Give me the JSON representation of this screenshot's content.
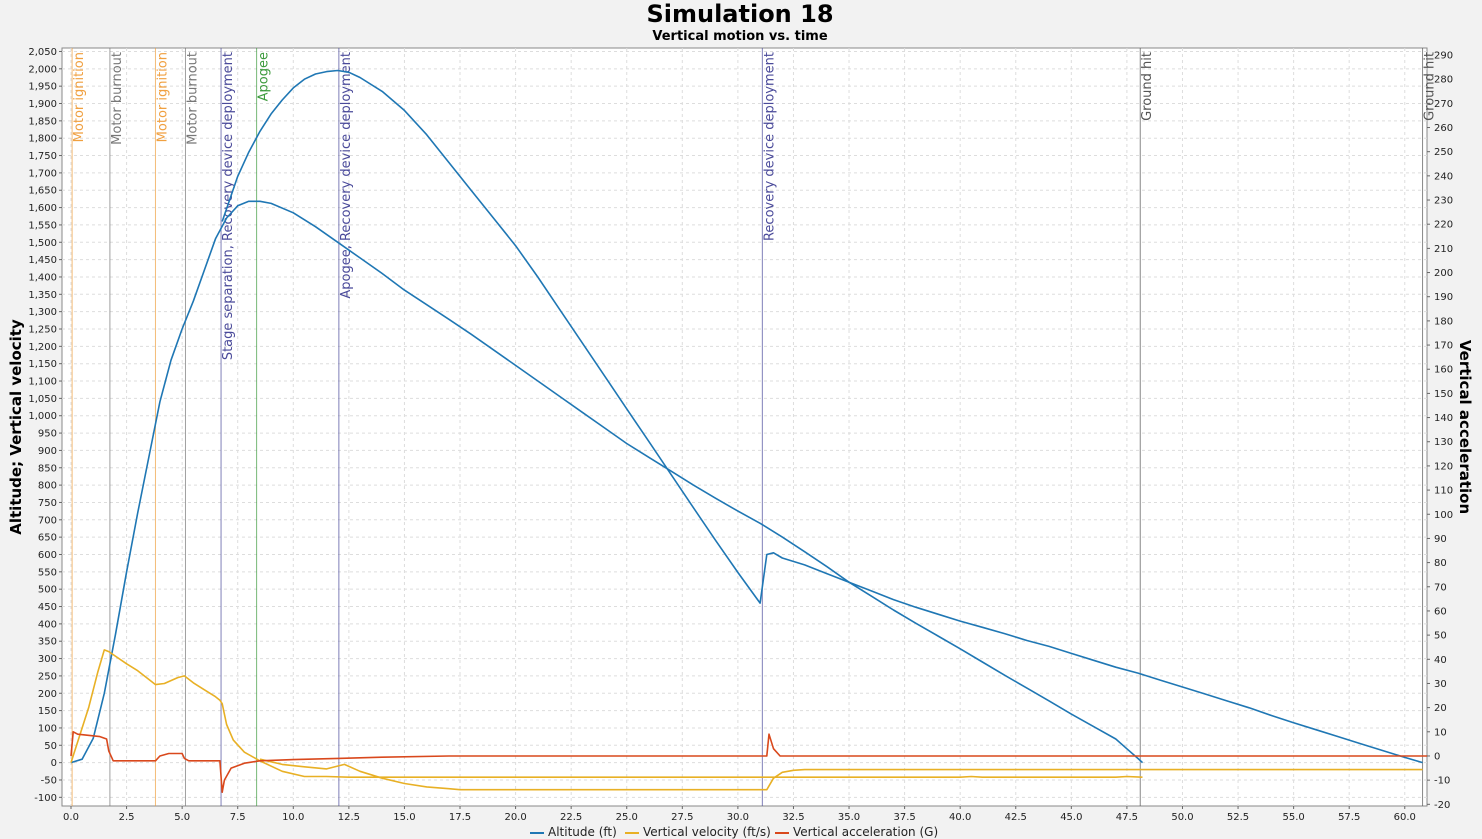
{
  "chart_data": {
    "type": "line",
    "title": "Simulation 18",
    "subtitle": "Vertical motion vs. time",
    "ylabel": "Altitude; Vertical velocity",
    "y2label": "Vertical acceleration",
    "xlim": [
      0,
      61
    ],
    "ylim": [
      -125,
      2060
    ],
    "y2lim": [
      -20.7,
      292.9
    ],
    "x_ticks": [
      "0.0",
      "2.5",
      "5.0",
      "7.5",
      "10.0",
      "12.5",
      "15.0",
      "17.5",
      "20.0",
      "22.5",
      "25.0",
      "27.5",
      "30.0",
      "32.5",
      "35.0",
      "37.5",
      "40.0",
      "42.5",
      "45.0",
      "47.5",
      "50.0",
      "52.5",
      "55.0",
      "57.5",
      "60.0"
    ],
    "y_ticks": [
      "-100",
      "-50",
      "0",
      "50",
      "100",
      "150",
      "200",
      "250",
      "300",
      "350",
      "400",
      "450",
      "500",
      "550",
      "600",
      "650",
      "700",
      "750",
      "800",
      "850",
      "900",
      "950",
      "1,000",
      "1,050",
      "1,100",
      "1,150",
      "1,200",
      "1,250",
      "1,300",
      "1,350",
      "1,400",
      "1,450",
      "1,500",
      "1,550",
      "1,600",
      "1,650",
      "1,700",
      "1,750",
      "1,800",
      "1,850",
      "1,900",
      "1,950",
      "2,000",
      "2,050"
    ],
    "y2_ticks": [
      "-20",
      "-10",
      "0",
      "10",
      "20",
      "30",
      "40",
      "50",
      "60",
      "70",
      "80",
      "90",
      "100",
      "110",
      "120",
      "130",
      "140",
      "150",
      "160",
      "170",
      "180",
      "190",
      "200",
      "210",
      "220",
      "230",
      "240",
      "250",
      "260",
      "270",
      "280",
      "290"
    ],
    "grid": true,
    "legend_position": "bottom",
    "colors": {
      "altitude": "#1f77b4",
      "velocity": "#e8b025",
      "acceleration": "#d9481c",
      "ignition": "#f0a040",
      "burnout": "#777777",
      "recovery": "#4a4a9a",
      "apogee": "#3c9a3c",
      "ground": "#555555"
    },
    "series": [
      {
        "name": "Altitude (ft)",
        "axis": "left",
        "points": [
          [
            0,
            0
          ],
          [
            0.5,
            10
          ],
          [
            1,
            70
          ],
          [
            1.5,
            200
          ],
          [
            2,
            370
          ],
          [
            2.5,
            550
          ],
          [
            3,
            720
          ],
          [
            3.5,
            880
          ],
          [
            4,
            1040
          ],
          [
            4.5,
            1160
          ],
          [
            5,
            1250
          ],
          [
            5.5,
            1330
          ],
          [
            6,
            1420
          ],
          [
            6.5,
            1510
          ],
          [
            7,
            1570
          ],
          [
            7.5,
            1605
          ],
          [
            8,
            1618
          ],
          [
            8.5,
            1618
          ],
          [
            9,
            1612
          ],
          [
            10,
            1585
          ],
          [
            11,
            1545
          ],
          [
            12,
            1500
          ],
          [
            13,
            1455
          ],
          [
            14,
            1410
          ],
          [
            15,
            1362
          ],
          [
            16,
            1320
          ],
          [
            17,
            1278
          ],
          [
            18,
            1235
          ],
          [
            19,
            1190
          ],
          [
            20,
            1145
          ],
          [
            21,
            1100
          ],
          [
            22,
            1055
          ],
          [
            23,
            1010
          ],
          [
            24,
            965
          ],
          [
            25,
            920
          ],
          [
            26,
            880
          ],
          [
            27,
            840
          ],
          [
            28,
            800
          ],
          [
            29,
            762
          ],
          [
            30,
            725
          ],
          [
            31,
            690
          ],
          [
            32,
            650
          ],
          [
            33,
            608
          ],
          [
            34,
            565
          ],
          [
            35,
            520
          ],
          [
            36,
            480
          ],
          [
            37,
            440
          ],
          [
            38,
            402
          ],
          [
            39,
            365
          ],
          [
            40,
            328
          ],
          [
            41,
            290
          ],
          [
            42,
            252
          ],
          [
            43,
            215
          ],
          [
            44,
            178
          ],
          [
            45,
            140
          ],
          [
            46,
            104
          ],
          [
            47,
            68
          ],
          [
            47.5,
            40
          ],
          [
            48,
            12
          ],
          [
            48.2,
            0
          ]
        ]
      },
      {
        "name": "Altitude (ft)",
        "axis": "left",
        "points": [
          [
            6.8,
            1560
          ],
          [
            7.5,
            1690
          ],
          [
            8,
            1760
          ],
          [
            8.5,
            1820
          ],
          [
            9,
            1870
          ],
          [
            9.5,
            1910
          ],
          [
            10,
            1945
          ],
          [
            10.5,
            1970
          ],
          [
            11,
            1985
          ],
          [
            11.5,
            1992
          ],
          [
            12,
            1995
          ],
          [
            12.5,
            1990
          ],
          [
            13,
            1975
          ],
          [
            14,
            1935
          ],
          [
            15,
            1880
          ],
          [
            16,
            1810
          ],
          [
            17,
            1730
          ],
          [
            18,
            1650
          ],
          [
            19,
            1570
          ],
          [
            20,
            1490
          ],
          [
            21,
            1400
          ],
          [
            22,
            1305
          ],
          [
            23,
            1210
          ],
          [
            24,
            1115
          ],
          [
            25,
            1020
          ],
          [
            26,
            925
          ],
          [
            27,
            830
          ],
          [
            28,
            735
          ],
          [
            29,
            640
          ],
          [
            30,
            548
          ],
          [
            31,
            460
          ],
          [
            31.3,
            600
          ],
          [
            31.6,
            605
          ],
          [
            32,
            590
          ],
          [
            33,
            570
          ],
          [
            34,
            545
          ],
          [
            35,
            520
          ],
          [
            36,
            495
          ],
          [
            37,
            470
          ],
          [
            38,
            448
          ],
          [
            39,
            428
          ],
          [
            40,
            408
          ],
          [
            41,
            390
          ],
          [
            42,
            372
          ],
          [
            43,
            352
          ],
          [
            44,
            335
          ],
          [
            45,
            315
          ],
          [
            46,
            295
          ],
          [
            47,
            275
          ],
          [
            48,
            258
          ],
          [
            49,
            238
          ],
          [
            50,
            218
          ],
          [
            51,
            198
          ],
          [
            52,
            178
          ],
          [
            53,
            158
          ],
          [
            54,
            136
          ],
          [
            55,
            115
          ],
          [
            56,
            95
          ],
          [
            57,
            75
          ],
          [
            58,
            55
          ],
          [
            59,
            35
          ],
          [
            60,
            15
          ],
          [
            60.8,
            0
          ]
        ]
      },
      {
        "name": "Vertical velocity (ft/s)",
        "axis": "left",
        "points": [
          [
            0,
            0
          ],
          [
            0.3,
            60
          ],
          [
            0.8,
            160
          ],
          [
            1.2,
            260
          ],
          [
            1.5,
            325
          ],
          [
            1.7,
            320
          ],
          [
            2.5,
            285
          ],
          [
            3,
            265
          ],
          [
            3.5,
            240
          ],
          [
            3.8,
            225
          ],
          [
            4.2,
            228
          ],
          [
            4.8,
            245
          ],
          [
            5.1,
            250
          ],
          [
            5.5,
            230
          ],
          [
            6,
            210
          ],
          [
            6.5,
            190
          ],
          [
            6.7,
            180
          ],
          [
            6.8,
            170
          ],
          [
            7,
            110
          ],
          [
            7.3,
            65
          ],
          [
            7.8,
            30
          ],
          [
            8.5,
            5
          ],
          [
            9.5,
            -25
          ],
          [
            10.5,
            -40
          ],
          [
            11.5,
            -40
          ],
          [
            12.5,
            -42
          ],
          [
            13,
            -42
          ],
          [
            14,
            -42
          ],
          [
            20,
            -42
          ],
          [
            30,
            -42
          ],
          [
            40,
            -42
          ],
          [
            40.5,
            -40
          ],
          [
            41,
            -42
          ],
          [
            47,
            -42
          ],
          [
            47.5,
            -40
          ],
          [
            48.2,
            -42
          ]
        ]
      },
      {
        "name": "Vertical velocity (ft/s)",
        "axis": "left",
        "points": [
          [
            8.5,
            10
          ],
          [
            9.5,
            -5
          ],
          [
            10.5,
            -12
          ],
          [
            11.5,
            -18
          ],
          [
            12.3,
            -5
          ],
          [
            13,
            -25
          ],
          [
            14,
            -45
          ],
          [
            15,
            -60
          ],
          [
            16,
            -70
          ],
          [
            17,
            -75
          ],
          [
            17.5,
            -78
          ],
          [
            25,
            -78
          ],
          [
            31.3,
            -78
          ],
          [
            31.6,
            -45
          ],
          [
            32,
            -28
          ],
          [
            32.5,
            -22
          ],
          [
            33,
            -20
          ],
          [
            45,
            -20
          ],
          [
            60.8,
            -20
          ]
        ]
      },
      {
        "name": "Vertical acceleration (G)",
        "axis": "right",
        "points": [
          [
            0,
            0
          ],
          [
            0.1,
            10
          ],
          [
            0.3,
            9
          ],
          [
            1.3,
            8
          ],
          [
            1.6,
            7
          ],
          [
            1.7,
            2
          ],
          [
            1.9,
            -2
          ],
          [
            3.8,
            -2
          ],
          [
            4.0,
            0
          ],
          [
            4.4,
            1
          ],
          [
            5.0,
            1
          ],
          [
            5.1,
            -1
          ],
          [
            5.3,
            -2
          ],
          [
            6.7,
            -2
          ],
          [
            6.8,
            -15
          ],
          [
            6.9,
            -10
          ],
          [
            7.2,
            -5
          ],
          [
            7.8,
            -3
          ],
          [
            8.5,
            -2
          ],
          [
            10,
            -1.5
          ],
          [
            12,
            -1
          ],
          [
            14,
            -0.5
          ],
          [
            17,
            0
          ],
          [
            31.3,
            0
          ],
          [
            31.4,
            9
          ],
          [
            31.6,
            3
          ],
          [
            31.9,
            0
          ],
          [
            61,
            0
          ]
        ]
      }
    ],
    "events": [
      {
        "t": 0.05,
        "label": "Motor ignition",
        "kind": "ignition"
      },
      {
        "t": 1.75,
        "label": "Motor burnout",
        "kind": "burnout"
      },
      {
        "t": 3.8,
        "label": "Motor ignition",
        "kind": "ignition"
      },
      {
        "t": 5.15,
        "label": "Motor burnout",
        "kind": "burnout"
      },
      {
        "t": 6.75,
        "label": "Stage separation, Recovery device deployment",
        "kind": "recovery"
      },
      {
        "t": 8.35,
        "label": "Apogee",
        "kind": "apogee"
      },
      {
        "t": 12.05,
        "label": "Apogee, Recovery device deployment",
        "kind": "recovery"
      },
      {
        "t": 31.1,
        "label": "Recovery device deployment",
        "kind": "recovery"
      },
      {
        "t": 48.1,
        "label": "Ground hit",
        "kind": "ground"
      },
      {
        "t": 60.8,
        "label": "Ground hit",
        "kind": "ground"
      }
    ],
    "legend": [
      "Altitude (ft)",
      "Vertical velocity (ft/s)",
      "Vertical acceleration (G)"
    ]
  }
}
